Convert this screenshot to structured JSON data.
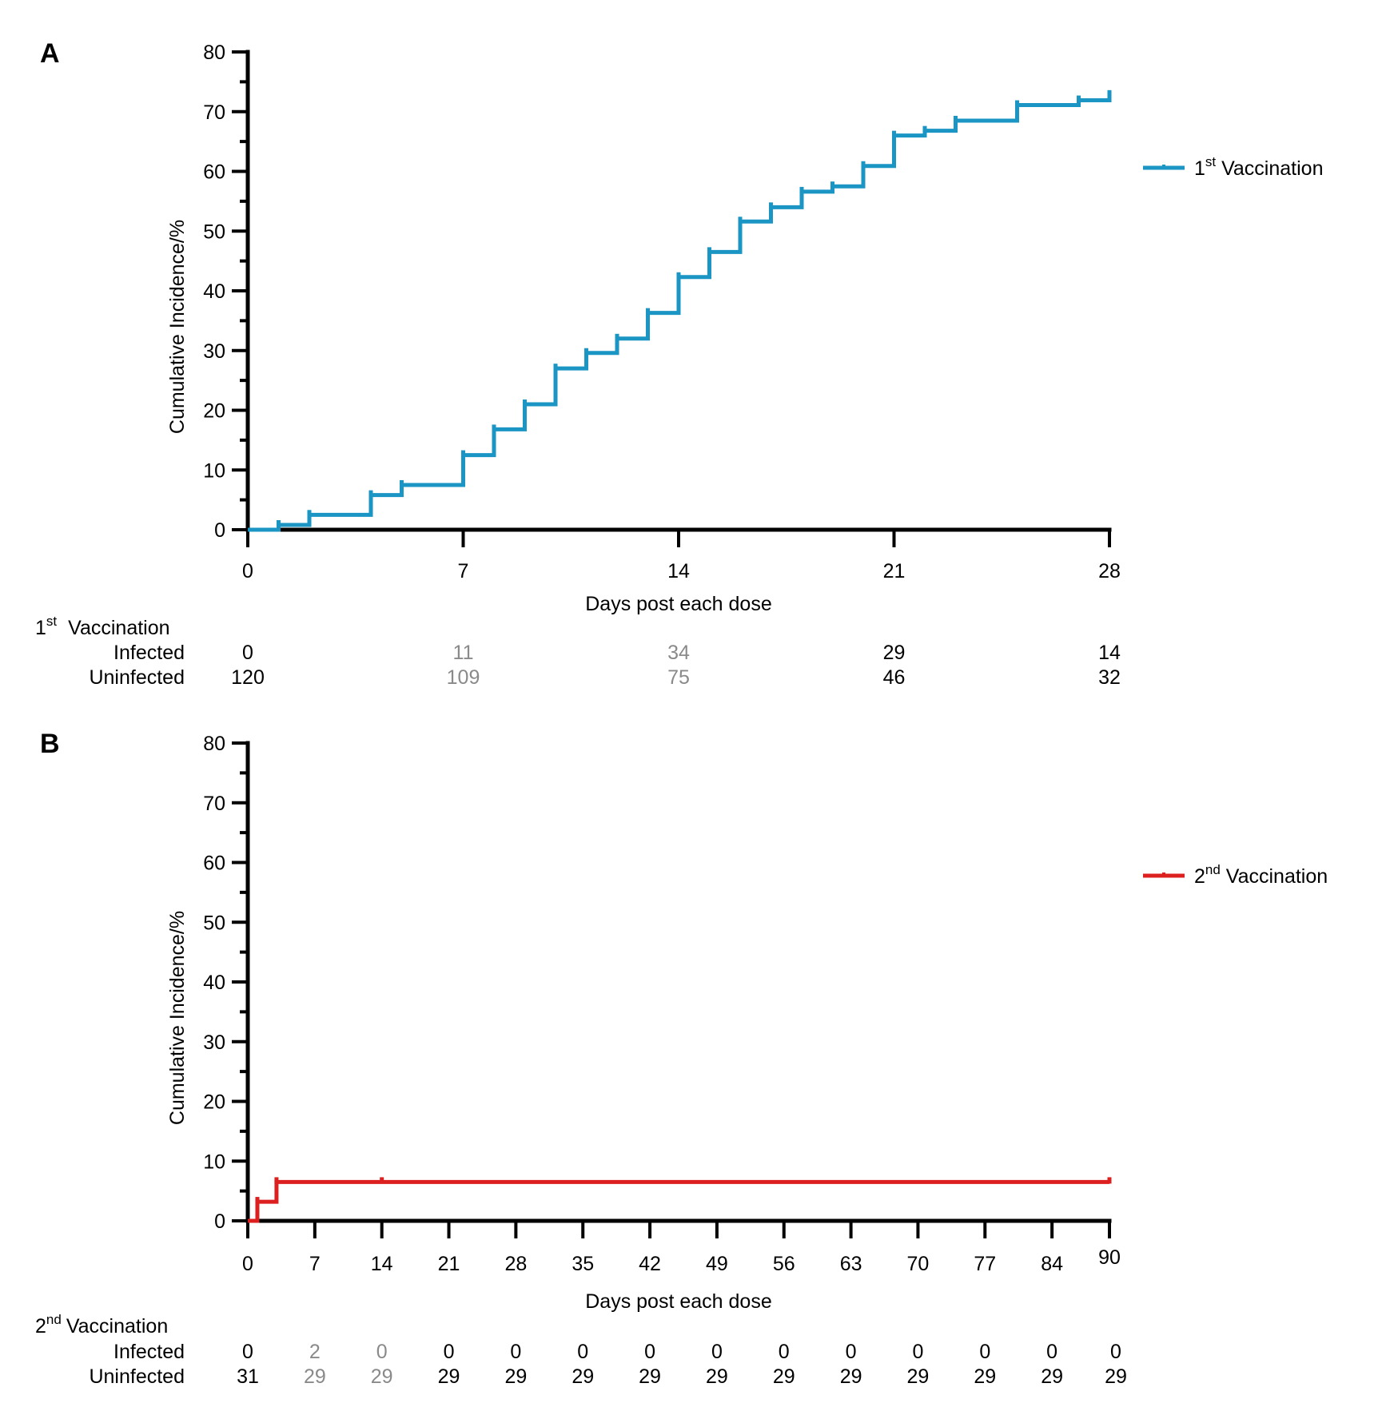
{
  "chart_data": [
    {
      "panel": "A",
      "type": "line",
      "step": true,
      "xlabel": "Days post each dose",
      "ylabel": "Cumulative Incidence/%",
      "xlim": [
        0,
        28
      ],
      "ylim": [
        0,
        80
      ],
      "xticks": [
        0,
        7,
        14,
        21,
        28
      ],
      "yticks": [
        0,
        10,
        20,
        30,
        40,
        50,
        60,
        70,
        80
      ],
      "yminor_step": 5,
      "legend_position": "right",
      "series": [
        {
          "name": "Vaccination",
          "name_prefix": "1",
          "name_sup": "st",
          "color": "#1a95c4",
          "x": [
            0,
            1,
            2,
            4,
            5,
            7,
            8,
            9,
            10,
            11,
            12,
            13,
            14,
            15,
            16,
            17,
            18,
            19,
            20,
            21,
            22,
            23,
            25,
            27,
            28
          ],
          "y": [
            0,
            0.8,
            2.5,
            5.8,
            7.5,
            12.5,
            16.8,
            21.0,
            27.0,
            29.6,
            32.0,
            36.3,
            42.3,
            46.5,
            51.6,
            54.0,
            56.6,
            57.5,
            60.9,
            66.0,
            66.8,
            68.5,
            71.1,
            71.9,
            72.8
          ]
        }
      ],
      "risk_table": {
        "header_prefix": "1",
        "header_sup": "st",
        "header": "Vaccination",
        "rows": [
          {
            "label": "Infected",
            "values": [
              "0",
              "11",
              "34",
              "29",
              "14"
            ]
          },
          {
            "label": "Uninfected",
            "values": [
              "120",
              "109",
              "75",
              "46",
              "32"
            ]
          }
        ],
        "x": [
          0,
          7,
          14,
          21,
          28
        ],
        "grey_columns": [
          1,
          2
        ]
      }
    },
    {
      "panel": "B",
      "type": "line",
      "step": true,
      "xlabel": "Days post each dose",
      "ylabel": "Cumulative Incidence/%",
      "xlim": [
        0,
        90
      ],
      "ylim": [
        0,
        80
      ],
      "xticks": [
        0,
        7,
        14,
        21,
        28,
        35,
        42,
        49,
        56,
        63,
        70,
        77,
        84,
        90
      ],
      "yticks": [
        0,
        10,
        20,
        30,
        40,
        50,
        60,
        70,
        80
      ],
      "yminor_step": 5,
      "legend_position": "right",
      "series": [
        {
          "name": "Vaccination",
          "name_prefix": "2",
          "name_sup": "nd",
          "color": "#dc2020",
          "x": [
            0,
            1,
            3,
            14,
            90
          ],
          "y": [
            0,
            3.2,
            6.5,
            6.5,
            6.5
          ]
        }
      ],
      "risk_table": {
        "header_prefix": "2",
        "header_sup": "nd",
        "header": "Vaccination",
        "rows": [
          {
            "label": "Infected",
            "values": [
              "0",
              "2",
              "0",
              "0",
              "0",
              "0",
              "0",
              "0",
              "0",
              "0",
              "0",
              "0",
              "0",
              "0"
            ]
          },
          {
            "label": "Uninfected",
            "values": [
              "31",
              "29",
              "29",
              "29",
              "29",
              "29",
              "29",
              "29",
              "29",
              "29",
              "29",
              "29",
              "29",
              "29"
            ]
          }
        ],
        "x": [
          0,
          7,
          14,
          21,
          28,
          35,
          42,
          49,
          56,
          63,
          70,
          77,
          84,
          90
        ],
        "grey_columns": [
          1,
          2
        ]
      }
    }
  ]
}
